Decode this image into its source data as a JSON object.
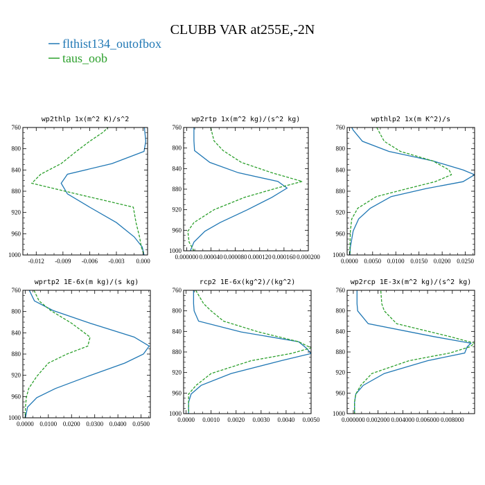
{
  "figure_title": "CLUBB VAR at255E,-2N",
  "legend": [
    {
      "label": "flthist134_outofbox",
      "color": "#1f77b4",
      "dash": "solid"
    },
    {
      "label": "taus_oob",
      "color": "#2ca02c",
      "dash": "dashed"
    }
  ],
  "chart_data": [
    {
      "type": "line",
      "title": "wp2thlp   1x(m^2 K)/s^2",
      "xlim": [
        -0.0135,
        0.0005
      ],
      "ylim": [
        760,
        1000
      ],
      "y_inverted": true,
      "x_ticks": [
        -0.012,
        -0.009,
        -0.006,
        -0.003,
        0.0
      ],
      "x_tick_labels": [
        "-0.012",
        "-0.009",
        "-0.006",
        "-0.003",
        "0.000"
      ],
      "y_ticks": [
        760,
        800,
        840,
        880,
        920,
        960,
        1000
      ],
      "y": [
        753,
        769,
        786,
        805,
        828,
        848,
        865,
        885,
        910,
        939,
        966,
        985,
        1000
      ],
      "series": [
        {
          "name": "flthist134_outofbox",
          "x": [
            0.0001,
            0.0002,
            0.0003,
            0.0001,
            -0.0035,
            -0.0085,
            -0.0092,
            -0.0085,
            -0.006,
            -0.003,
            -0.001,
            -0.0001,
            0.0001
          ]
        },
        {
          "name": "taus_oob",
          "x": [
            -0.0035,
            -0.0045,
            -0.006,
            -0.0075,
            -0.0092,
            -0.0115,
            -0.0125,
            -0.0075,
            -0.0011,
            -0.0008,
            -0.0004,
            -0.0002,
            0.0001
          ]
        }
      ]
    },
    {
      "type": "line",
      "title": "wp2rtp   1x(m^2 kg)/(s^2 kg)",
      "xlim": [
        -5e-06,
        0.0002
      ],
      "ylim": [
        760,
        1000
      ],
      "y_inverted": true,
      "x_ticks": [
        0.0,
        4e-05,
        8e-05,
        0.00012,
        0.00016,
        0.0002
      ],
      "x_tick_labels": [
        "0.000000",
        "0.000040",
        "0.000080",
        "0.000120",
        "0.000160",
        "0.000200"
      ],
      "y_ticks": [
        760,
        800,
        840,
        880,
        920,
        960,
        1000
      ],
      "y": [
        753,
        786,
        805,
        828,
        848,
        865,
        878,
        896,
        920,
        945,
        962,
        983,
        1000
      ],
      "series": [
        {
          "name": "flthist134_outofbox",
          "x": [
            1.2e-05,
            1.2e-05,
            1.3e-05,
            3.8e-05,
            8.5e-05,
            0.00015,
            0.000165,
            0.00014,
            0.0001,
            5.5e-05,
            3e-05,
            1.2e-05,
            6e-06
          ]
        },
        {
          "name": "taus_oob",
          "x": [
            3.8e-05,
            4.5e-05,
            6e-05,
            9e-05,
            0.00014,
            0.00019,
            0.000148,
            9.5e-05,
            4.5e-05,
            1.2e-05,
            2e-06,
            4e-06,
            1.2e-05
          ]
        }
      ]
    },
    {
      "type": "line",
      "title": "wpthlp2   1x(m K^2)/s",
      "xlim": [
        -0.0005,
        0.027
      ],
      "ylim": [
        760,
        1000
      ],
      "y_inverted": true,
      "x_ticks": [
        0.0,
        0.005,
        0.01,
        0.015,
        0.02,
        0.025
      ],
      "x_tick_labels": [
        "0.0000",
        "0.0050",
        "0.0100",
        "0.0150",
        "0.0200",
        "0.0250"
      ],
      "y_ticks": [
        760,
        800,
        840,
        880,
        920,
        960,
        1000
      ],
      "y": [
        753,
        765,
        786,
        805,
        823,
        840,
        849,
        862,
        875,
        890,
        912,
        932,
        955,
        985,
        1000
      ],
      "series": [
        {
          "name": "flthist134_outofbox",
          "x": [
            0.0001,
            0.0008,
            0.0028,
            0.0085,
            0.018,
            0.0245,
            0.027,
            0.0245,
            0.0165,
            0.009,
            0.0045,
            0.002,
            0.0008,
            0.0002,
            0.0001
          ]
        },
        {
          "name": "taus_oob",
          "x": [
            0.0055,
            0.0062,
            0.0075,
            0.011,
            0.018,
            0.0215,
            0.022,
            0.0185,
            0.0125,
            0.0058,
            0.0018,
            0.0005,
            0.0002,
            0.0001,
            0.0001
          ]
        }
      ]
    },
    {
      "type": "line",
      "title": "wprtp2   1E-6x(m kg)/(s kg)",
      "xlim": [
        -0.001,
        0.054
      ],
      "ylim": [
        760,
        1000
      ],
      "y_inverted": true,
      "x_ticks": [
        0.0,
        0.01,
        0.02,
        0.03,
        0.04,
        0.05
      ],
      "x_tick_labels": [
        "0.0000",
        "0.0100",
        "0.0200",
        "0.0300",
        "0.0400",
        "0.0500"
      ],
      "y_ticks": [
        760,
        800,
        840,
        880,
        920,
        960,
        1000
      ],
      "y": [
        753,
        780,
        798,
        822,
        848,
        865,
        880,
        897,
        922,
        945,
        962,
        980,
        1000
      ],
      "series": [
        {
          "name": "flthist134_outofbox",
          "x": [
            0.001,
            0.004,
            0.012,
            0.028,
            0.047,
            0.0535,
            0.051,
            0.043,
            0.027,
            0.013,
            0.005,
            0.001,
            0.0001
          ]
        },
        {
          "name": "taus_oob",
          "x": [
            0.003,
            0.006,
            0.011,
            0.02,
            0.028,
            0.027,
            0.018,
            0.01,
            0.005,
            0.0015,
            0.0005,
            0.0001,
            0.0
          ]
        }
      ]
    },
    {
      "type": "line",
      "title": "rcp2   1E-6x(kg^2)/(kg^2)",
      "xlim": [
        -0.0001,
        0.005
      ],
      "ylim": [
        760,
        1000
      ],
      "y_inverted": true,
      "x_ticks": [
        0.0,
        0.001,
        0.002,
        0.003,
        0.004,
        0.005
      ],
      "x_tick_labels": [
        "0.0000",
        "0.0010",
        "0.0020",
        "0.0030",
        "0.0040",
        "0.0050"
      ],
      "y_ticks": [
        760,
        800,
        840,
        880,
        920,
        960,
        1000
      ],
      "y": [
        753,
        786,
        800,
        820,
        841,
        860,
        872,
        883,
        897,
        922,
        945,
        962,
        978,
        1000
      ],
      "series": [
        {
          "name": "flthist134_outofbox",
          "x": [
            0.0003,
            0.0003,
            0.00032,
            0.0005,
            0.0022,
            0.0045,
            0.0048,
            0.005,
            0.0038,
            0.0018,
            0.0006,
            0.0002,
            0.0001,
            0.0001
          ]
        },
        {
          "name": "taus_oob",
          "x": [
            0.0003,
            0.0007,
            0.001,
            0.0015,
            0.0029,
            0.0045,
            0.005,
            0.0042,
            0.0026,
            0.001,
            0.0004,
            0.0001,
            0.0001,
            0.0001
          ]
        }
      ]
    },
    {
      "type": "line",
      "title": "wp2rcp   1E-3x(m^2 kg)/(s^2 kg)",
      "xlim": [
        -0.0005,
        0.0098
      ],
      "ylim": [
        760,
        1000
      ],
      "y_inverted": true,
      "x_ticks": [
        0.0,
        0.002,
        0.004,
        0.006,
        0.008
      ],
      "x_tick_labels": [
        "0.000000",
        "0.002000",
        "0.004000",
        "0.006000",
        "0.008000"
      ],
      "y_ticks": [
        760,
        800,
        840,
        880,
        920,
        960,
        1000
      ],
      "y": [
        753,
        786,
        800,
        825,
        850,
        863,
        870,
        882,
        897,
        922,
        945,
        962,
        978,
        1000
      ],
      "series": [
        {
          "name": "flthist134_outofbox",
          "x": [
            0.0003,
            0.0003,
            0.00035,
            0.0012,
            0.0065,
            0.0095,
            0.0092,
            0.009,
            0.006,
            0.0025,
            0.0008,
            0.0002,
            0.0001,
            0.0001
          ]
        },
        {
          "name": "taus_oob",
          "x": [
            0.0022,
            0.0023,
            0.0025,
            0.0035,
            0.0078,
            0.0098,
            0.0094,
            0.0078,
            0.0045,
            0.0015,
            0.0006,
            0.0002,
            0.0001,
            0.0001
          ]
        }
      ]
    }
  ]
}
